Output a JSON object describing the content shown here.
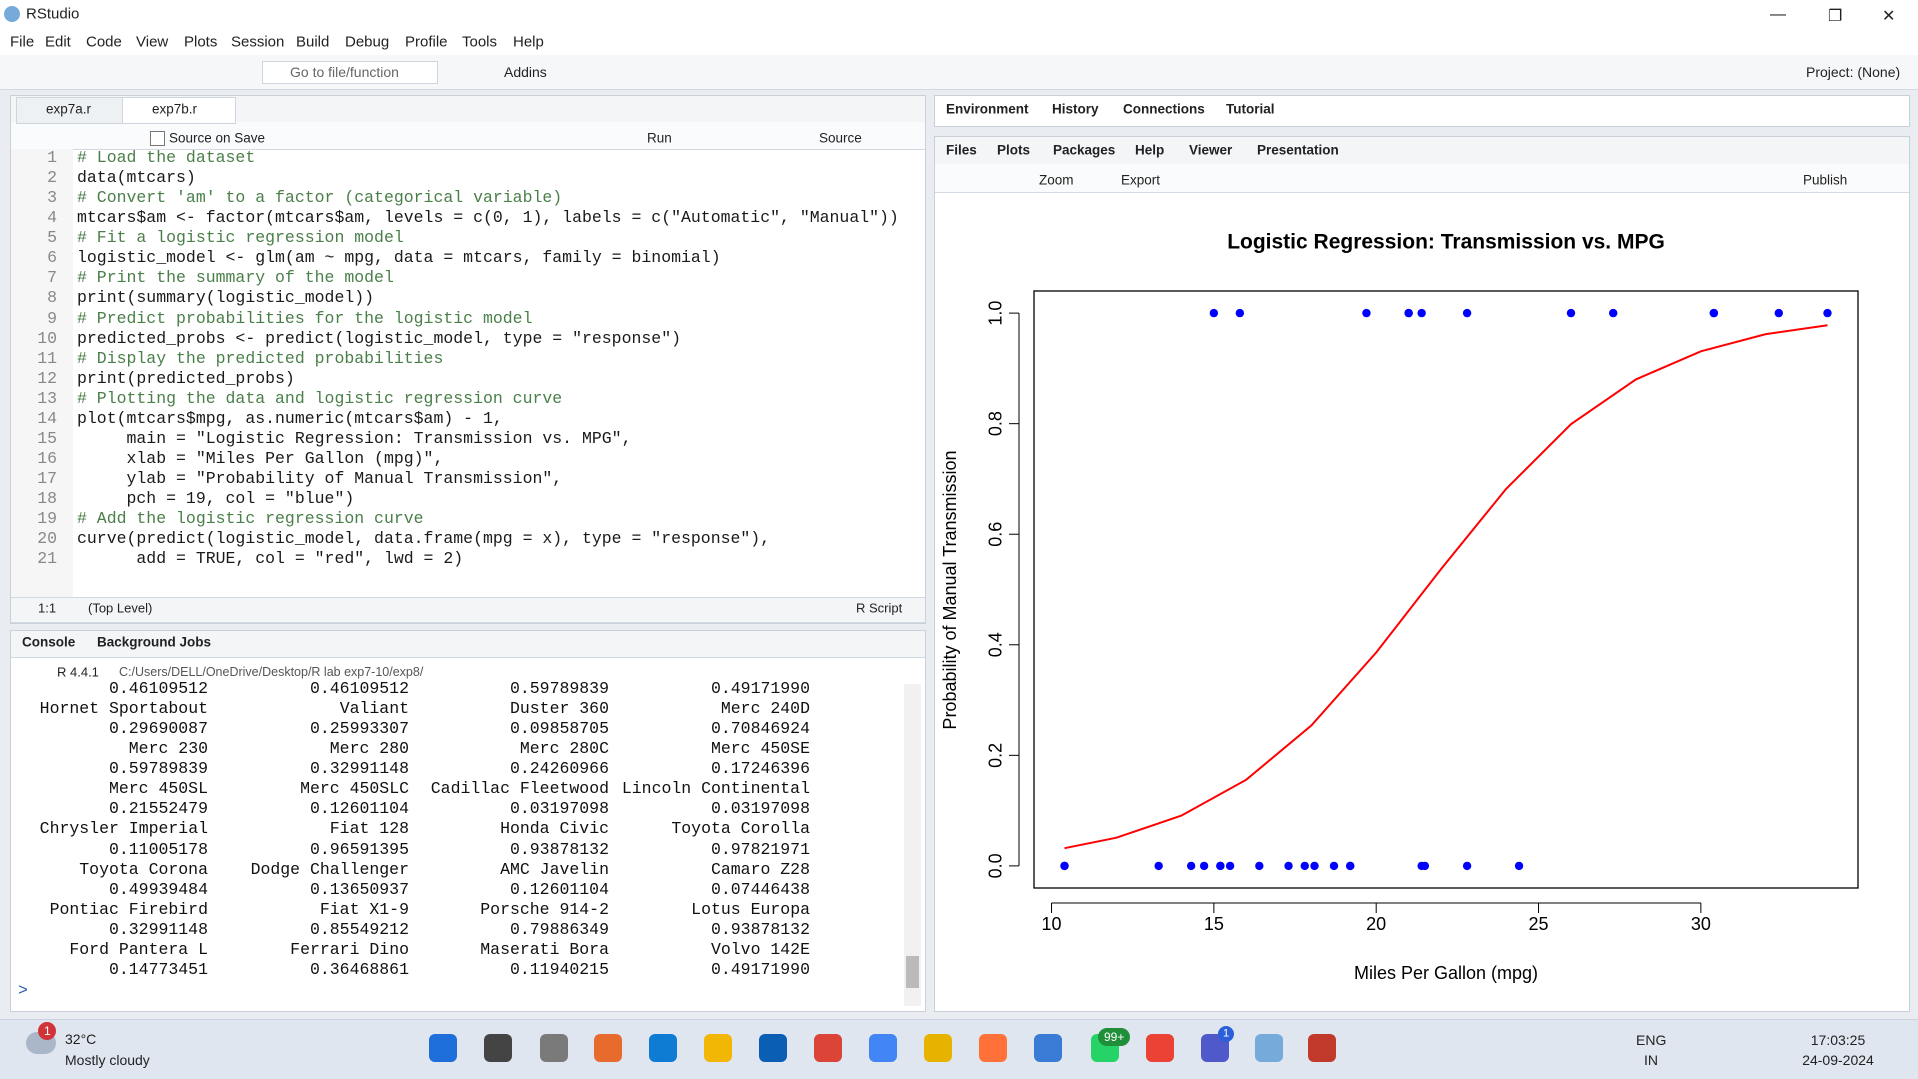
{
  "window": {
    "title": "RStudio"
  },
  "menu": [
    "File",
    "Edit",
    "Code",
    "View",
    "Plots",
    "Session",
    "Build",
    "Debug",
    "Profile",
    "Tools",
    "Help"
  ],
  "toolbar": {
    "goto": "Go to file/function",
    "addins": "Addins",
    "project": "Project: (None)"
  },
  "editor": {
    "tabs": [
      "exp7a.r",
      "exp7b.r"
    ],
    "toolbar": {
      "source_on_save": "Source on Save",
      "run": "Run",
      "source": "Source"
    },
    "lines": [
      {
        "n": "1",
        "code": "# Load the dataset"
      },
      {
        "n": "2",
        "code": "data(mtcars)"
      },
      {
        "n": "3",
        "code": "# Convert 'am' to a factor (categorical variable)"
      },
      {
        "n": "4",
        "code": "mtcars$am <- factor(mtcars$am, levels = c(0, 1), labels = c(\"Automatic\", \"Manual\"))"
      },
      {
        "n": "5",
        "code": "# Fit a logistic regression model"
      },
      {
        "n": "6",
        "code": "logistic_model <- glm(am ~ mpg, data = mtcars, family = binomial)"
      },
      {
        "n": "7",
        "code": "# Print the summary of the model"
      },
      {
        "n": "8",
        "code": "print(summary(logistic_model))"
      },
      {
        "n": "9",
        "code": "# Predict probabilities for the logistic model"
      },
      {
        "n": "10",
        "code": "predicted_probs <- predict(logistic_model, type = \"response\")"
      },
      {
        "n": "11",
        "code": "# Display the predicted probabilities"
      },
      {
        "n": "12",
        "code": "print(predicted_probs)"
      },
      {
        "n": "13",
        "code": "# Plotting the data and logistic regression curve"
      },
      {
        "n": "14",
        "code": "plot(mtcars$mpg, as.numeric(mtcars$am) - 1,"
      },
      {
        "n": "15",
        "code": "     main = \"Logistic Regression: Transmission vs. MPG\","
      },
      {
        "n": "16",
        "code": "     xlab = \"Miles Per Gallon (mpg)\","
      },
      {
        "n": "17",
        "code": "     ylab = \"Probability of Manual Transmission\","
      },
      {
        "n": "18",
        "code": "     pch = 19, col = \"blue\")"
      },
      {
        "n": "19",
        "code": "# Add the logistic regression curve"
      },
      {
        "n": "20",
        "code": "curve(predict(logistic_model, data.frame(mpg = x), type = \"response\"),"
      },
      {
        "n": "21",
        "code": "      add = TRUE, col = \"red\", lwd = 2)"
      }
    ],
    "status": {
      "position": "1:1",
      "scope": "(Top Level)",
      "type": "R Script"
    }
  },
  "console": {
    "tabs": [
      "Console",
      "Background Jobs"
    ],
    "version": "R 4.4.1",
    "path": "C:/Users/DELL/OneDrive/Desktop/R lab exp7-10/exp8/",
    "output": [
      [
        "0.46109512",
        "0.46109512",
        "0.59789839",
        "0.49171990"
      ],
      [
        "Hornet Sportabout",
        "Valiant",
        "Duster 360",
        "Merc 240D"
      ],
      [
        "0.29690087",
        "0.25993307",
        "0.09858705",
        "0.70846924"
      ],
      [
        "Merc 230",
        "Merc 280",
        "Merc 280C",
        "Merc 450SE"
      ],
      [
        "0.59789839",
        "0.32991148",
        "0.24260966",
        "0.17246396"
      ],
      [
        "Merc 450SL",
        "Merc 450SLC",
        "Cadillac Fleetwood",
        "Lincoln Continental"
      ],
      [
        "0.21552479",
        "0.12601104",
        "0.03197098",
        "0.03197098"
      ],
      [
        "Chrysler Imperial",
        "Fiat 128",
        "Honda Civic",
        "Toyota Corolla"
      ],
      [
        "0.11005178",
        "0.96591395",
        "0.93878132",
        "0.97821971"
      ],
      [
        "Toyota Corona",
        "Dodge Challenger",
        "AMC Javelin",
        "Camaro Z28"
      ],
      [
        "0.49939484",
        "0.13650937",
        "0.12601104",
        "0.07446438"
      ],
      [
        "Pontiac Firebird",
        "Fiat X1-9",
        "Porsche 914-2",
        "Lotus Europa"
      ],
      [
        "0.32991148",
        "0.85549212",
        "0.79886349",
        "0.93878132"
      ],
      [
        "Ford Pantera L",
        "Ferrari Dino",
        "Maserati Bora",
        "Volvo 142E"
      ],
      [
        "0.14773451",
        "0.36468861",
        "0.11940215",
        "0.49171990"
      ]
    ],
    "prompt": ">"
  },
  "environment_tabs": [
    "Environment",
    "History",
    "Connections",
    "Tutorial"
  ],
  "files_tabs": [
    "Files",
    "Plots",
    "Packages",
    "Help",
    "Viewer",
    "Presentation"
  ],
  "plot_toolbar": {
    "zoom": "Zoom",
    "export": "Export",
    "publish": "Publish"
  },
  "plot": {
    "type": "scatter",
    "title": "Logistic Regression: Transmission vs. MPG",
    "x_label": "Miles Per Gallon (mpg)",
    "y_label": "Probability of Manual Transmission",
    "x": [
      21,
      21,
      22.8,
      21.4,
      18.7,
      18.1,
      14.3,
      24.4,
      22.8,
      19.2,
      17.8,
      16.4,
      17.3,
      15.2,
      10.4,
      10.4,
      14.7,
      32.4,
      30.4,
      33.9,
      21.5,
      15.5,
      15.2,
      13.3,
      19.2,
      27.3,
      26,
      30.4,
      15.8,
      19.7,
      15,
      21.4
    ],
    "y": [
      1,
      1,
      1,
      0,
      0,
      0,
      0,
      0,
      0,
      0,
      0,
      0,
      0,
      0,
      0,
      0,
      0,
      1,
      1,
      1,
      0,
      0,
      0,
      0,
      0,
      1,
      1,
      1,
      1,
      1,
      1,
      1
    ],
    "color": "blue",
    "curve": {
      "x": [
        10.4,
        12,
        14,
        16,
        18,
        20,
        22,
        24,
        26,
        28,
        30,
        32,
        33.9
      ],
      "y": [
        0.032,
        0.051,
        0.091,
        0.156,
        0.254,
        0.386,
        0.537,
        0.682,
        0.799,
        0.88,
        0.931,
        0.962,
        0.978
      ],
      "color": "red"
    },
    "xlim": [
      9.46,
      34.84
    ],
    "ylim": [
      -0.04,
      1.04
    ],
    "xticks": [
      10,
      15,
      20,
      25,
      30
    ],
    "yticks": [
      {
        "value": 0,
        "label": "0.0"
      },
      {
        "value": 0.2,
        "label": "0.2"
      },
      {
        "value": 0.4,
        "label": "0.4"
      },
      {
        "value": 0.6,
        "label": "0.6"
      },
      {
        "value": 0.8,
        "label": "0.8"
      },
      {
        "value": 1,
        "label": "1.0"
      }
    ]
  },
  "taskbar": {
    "weather_badge": "1",
    "temperature": "32°C",
    "weather": "Mostly cloudy",
    "whatsapp_badge": "99+",
    "teams_badge": "1",
    "language": "ENG",
    "region": "IN",
    "time": "17:03:25",
    "date": "24-09-2024"
  }
}
